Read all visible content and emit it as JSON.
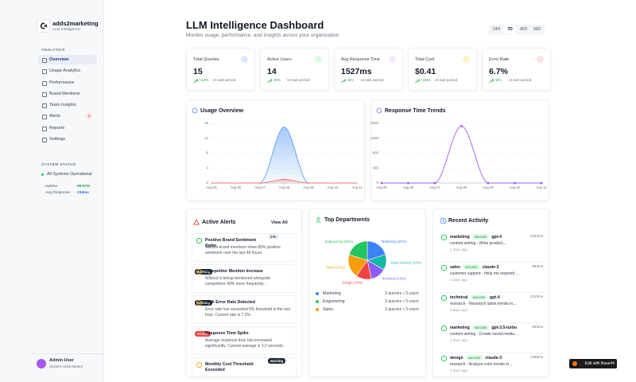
{
  "sidebar": {
    "brand": "adds2marketing",
    "tagline": "LLM Intelligence",
    "section": "ANALYTICS",
    "nav": [
      {
        "label": "Overview"
      },
      {
        "label": "Usage Analytics"
      },
      {
        "label": "Performance"
      },
      {
        "label": "Brand Mentions"
      },
      {
        "label": "Team Insights"
      },
      {
        "label": "Alerts",
        "badge": "3"
      },
      {
        "label": "Reports"
      },
      {
        "label": "Settings"
      }
    ],
    "status_title": "SYSTEM STATUS",
    "status": "All Systems Operational",
    "stats": [
      {
        "label": "Uptime",
        "value": "99.97%"
      },
      {
        "label": "Avg Response",
        "value": "234ms"
      }
    ],
    "user": {
      "name": "Admin User",
      "role": "System Administrator"
    }
  },
  "header": {
    "title": "LLM Intelligence Dashboard",
    "subtitle": "Monitor usage, performance, and insights across your organization",
    "ranges": [
      "24H",
      "7D",
      "30D",
      "90D"
    ]
  },
  "kpis": [
    {
      "label": "Total Queries",
      "value": "15",
      "change": "+12%",
      "note": "vs last period"
    },
    {
      "label": "Active Users",
      "value": "14",
      "change": "+8%",
      "note": "vs last period"
    },
    {
      "label": "Avg Response Time",
      "value": "1527ms",
      "change": "-5%",
      "note": "vs last period"
    },
    {
      "label": "Total Cost",
      "value": "$0.41",
      "change": "+15%",
      "note": "vs last period"
    },
    {
      "label": "Error Rate",
      "value": "6.7%",
      "change": "-2%",
      "note": "vs last period"
    }
  ],
  "chart_data": [
    {
      "type": "area",
      "title": "Usage Overview",
      "categories": [
        "Aug 05",
        "Aug 06",
        "Aug 07",
        "Aug 08",
        "Aug 09",
        "Aug 10",
        "Aug 11"
      ],
      "series": [
        {
          "color": "#5b9cf2",
          "values": [
            0,
            0,
            0,
            15,
            0,
            0,
            0
          ]
        },
        {
          "color": "#f07070",
          "values": [
            0,
            0,
            0,
            1,
            0,
            0,
            0
          ]
        }
      ],
      "ylim": [
        0,
        16
      ],
      "yticks": [
        0,
        4,
        8,
        12,
        16
      ],
      "grid": true
    },
    {
      "type": "line",
      "title": "Response Time Trends",
      "categories": [
        "Aug 05",
        "Aug 06",
        "Aug 07",
        "Aug 08",
        "Aug 09",
        "Aug 10",
        "Aug 11"
      ],
      "series": [
        {
          "color": "#a259f0",
          "values": [
            0,
            0,
            0,
            1527,
            0,
            0,
            0
          ]
        }
      ],
      "ylim": [
        0,
        1600
      ],
      "yticks": [
        0,
        400,
        800,
        1200,
        1600
      ],
      "grid": true
    },
    {
      "type": "pie",
      "title": "Top Departments",
      "categories": [
        "Marketing",
        "Data Science",
        "Technical",
        "Design",
        "Sales",
        "Engineering"
      ],
      "values": [
        20,
        13,
        13,
        13,
        20,
        20
      ],
      "value_labels": [
        "Marketing (20%)",
        "Data Science (13%)",
        "Technical (13%)",
        "Design (13%)",
        "Sales (20%)",
        "Engineering (20%)"
      ],
      "colors": [
        "#3b82f6",
        "#14b8a6",
        "#8b5cf6",
        "#ef4444",
        "#f59e0b",
        "#22c55e"
      ],
      "legend": [
        {
          "name": "Marketing",
          "color": "#3b82f6",
          "detail": "3 queries • 3 users"
        },
        {
          "name": "Engineering",
          "color": "#22c55e",
          "detail": "3 queries • 3 users"
        },
        {
          "name": "Sales",
          "color": "#f59e0b",
          "detail": "3 queries • 3 users"
        }
      ]
    }
  ],
  "alerts": {
    "title": "Active Alerts",
    "view_all": "View All",
    "items": [
      {
        "title": "Positive Brand Sentiment Spike",
        "level": "info",
        "text": "Wilsoul brand mentions show 85% positive sentiment over the last 48 hours."
      },
      {
        "title": "Competitor Mention Increase",
        "level": "warning",
        "text": "Wilsoul is being mentioned alongside competitors 40% more frequently..."
      },
      {
        "title": "High Error Rate Detected",
        "level": "warning",
        "text": "Error rate has exceeded 5% threshold in the last hour. Current rate is 7.2%."
      },
      {
        "title": "Response Time Spike",
        "level": "critical",
        "text": "Average response time has increased significantly. Current average is 3.2 seconds."
      },
      {
        "title": "Monthly Cost Threshold Exceeded",
        "level": "warning"
      }
    ]
  },
  "activity": {
    "title": "Recent Activity",
    "items": [
      {
        "team": "marketing",
        "status": "success",
        "model": "gpt-4",
        "duration": "1540ms",
        "text": "content writing - Write product...",
        "time": "2 days ago"
      },
      {
        "team": "sales",
        "status": "success",
        "model": "claude-3",
        "duration": "980ms",
        "text": "customer support - Help me respond ...",
        "time": "3 days ago"
      },
      {
        "team": "technical",
        "status": "success",
        "model": "gpt-4",
        "duration": "2110ms",
        "text": "research - Research latest trends in...",
        "time": "3 days ago"
      },
      {
        "team": "marketing",
        "status": "success",
        "model": "gpt-3.5-turbo",
        "duration": "850ms",
        "text": "content writing - Create social media...",
        "time": "3 days ago"
      },
      {
        "team": "design",
        "status": "success",
        "model": "claude-3",
        "duration": "1455ms",
        "text": "research - Analyze color trends in...",
        "time": "3 days ago"
      }
    ]
  },
  "edit_button": "Edit with Base44"
}
